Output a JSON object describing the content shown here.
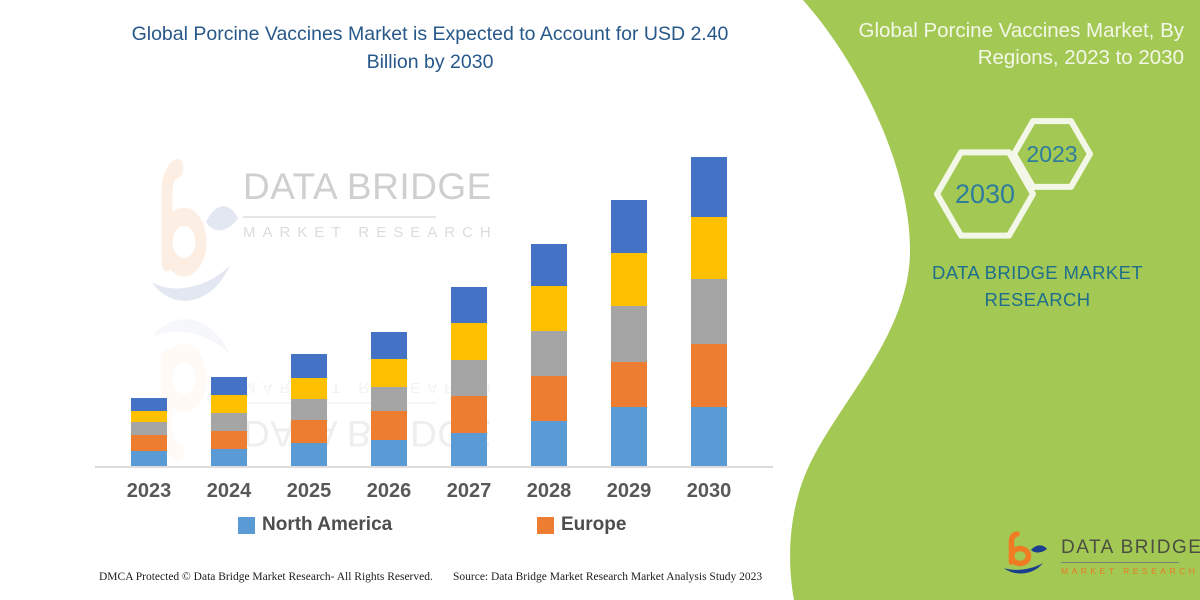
{
  "header": {
    "chart_title": "Global Porcine Vaccines Market is Expected to Account for USD 2.40 Billion by 2030",
    "panel_title": "Global Porcine Vaccines Market, By Regions, 2023 to 2030"
  },
  "panel": {
    "bg_color": "#a4c854",
    "hexagon_stroke_color": "#f3f7e8",
    "year_text_color": "#2e7d9c",
    "hexagons": [
      {
        "label": "2030"
      },
      {
        "label": "2023"
      }
    ],
    "brand_caption": "DATA BRIDGE MARKET RESEARCH"
  },
  "watermark": {
    "line1": "DATA BRIDGE",
    "line2": "MARKET RESEARCH"
  },
  "chart_data": {
    "type": "bar",
    "stacked": true,
    "title": "Global Porcine Vaccines Market is Expected to Account for USD 2.40 Billion by 2030",
    "unit": "USD Billion",
    "categories": [
      "2023",
      "2024",
      "2025",
      "2026",
      "2027",
      "2028",
      "2029",
      "2030"
    ],
    "series": [
      {
        "name": "North America",
        "color": "#5B9BD5",
        "values": [
          0.12,
          0.13,
          0.18,
          0.2,
          0.26,
          0.35,
          0.46,
          0.46
        ]
      },
      {
        "name": "Europe",
        "color": "#ED7D31",
        "values": [
          0.12,
          0.14,
          0.18,
          0.23,
          0.28,
          0.35,
          0.35,
          0.49
        ]
      },
      {
        "name": "",
        "color": "#A5A5A5",
        "values": [
          0.1,
          0.14,
          0.16,
          0.18,
          0.28,
          0.35,
          0.43,
          0.5
        ]
      },
      {
        "name": "",
        "color": "#FFC000",
        "values": [
          0.09,
          0.14,
          0.16,
          0.22,
          0.29,
          0.35,
          0.41,
          0.48
        ]
      },
      {
        "name": "",
        "color": "#4472C4",
        "values": [
          0.1,
          0.14,
          0.19,
          0.21,
          0.28,
          0.32,
          0.41,
          0.47
        ]
      }
    ],
    "totals": [
      0.53,
      0.69,
      0.87,
      1.04,
      1.39,
      1.72,
      2.06,
      2.4
    ],
    "ylim": [
      0,
      2.5
    ],
    "gridlines": false,
    "y_axis_visible": false,
    "legend_position": "bottom",
    "legend_visible_entries": [
      "North America",
      "Europe"
    ]
  },
  "legend": {
    "items": [
      {
        "label": "North America",
        "color": "#5B9BD5"
      },
      {
        "label": "Europe",
        "color": "#ED7D31"
      }
    ]
  },
  "footer": {
    "dmca": "DMCA Protected © Data Bridge Market Research-  All Rights Reserved.",
    "source": "Source: Data Bridge Market Research  Market Analysis Study 2023"
  },
  "brand_logo": {
    "name": "DATA BRIDGE",
    "tagline": "MARKET RESEARCH"
  }
}
